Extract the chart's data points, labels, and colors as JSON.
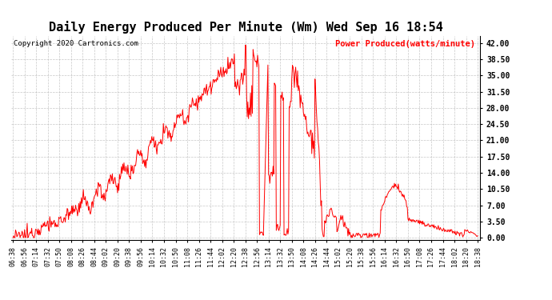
{
  "title": "Daily Energy Produced Per Minute (Wm) Wed Sep 16 18:54",
  "legend_label": "Power Produced(watts/minute)",
  "copyright": "Copyright 2020 Cartronics.com",
  "line_color": "red",
  "background_color": "#ffffff",
  "grid_color": "#b0b0b0",
  "yticks": [
    0.0,
    3.5,
    7.0,
    10.5,
    14.0,
    17.5,
    21.0,
    24.5,
    28.0,
    31.5,
    35.0,
    38.5,
    42.0
  ],
  "ymax": 43.5,
  "ymin": -0.5,
  "title_fontsize": 11
}
